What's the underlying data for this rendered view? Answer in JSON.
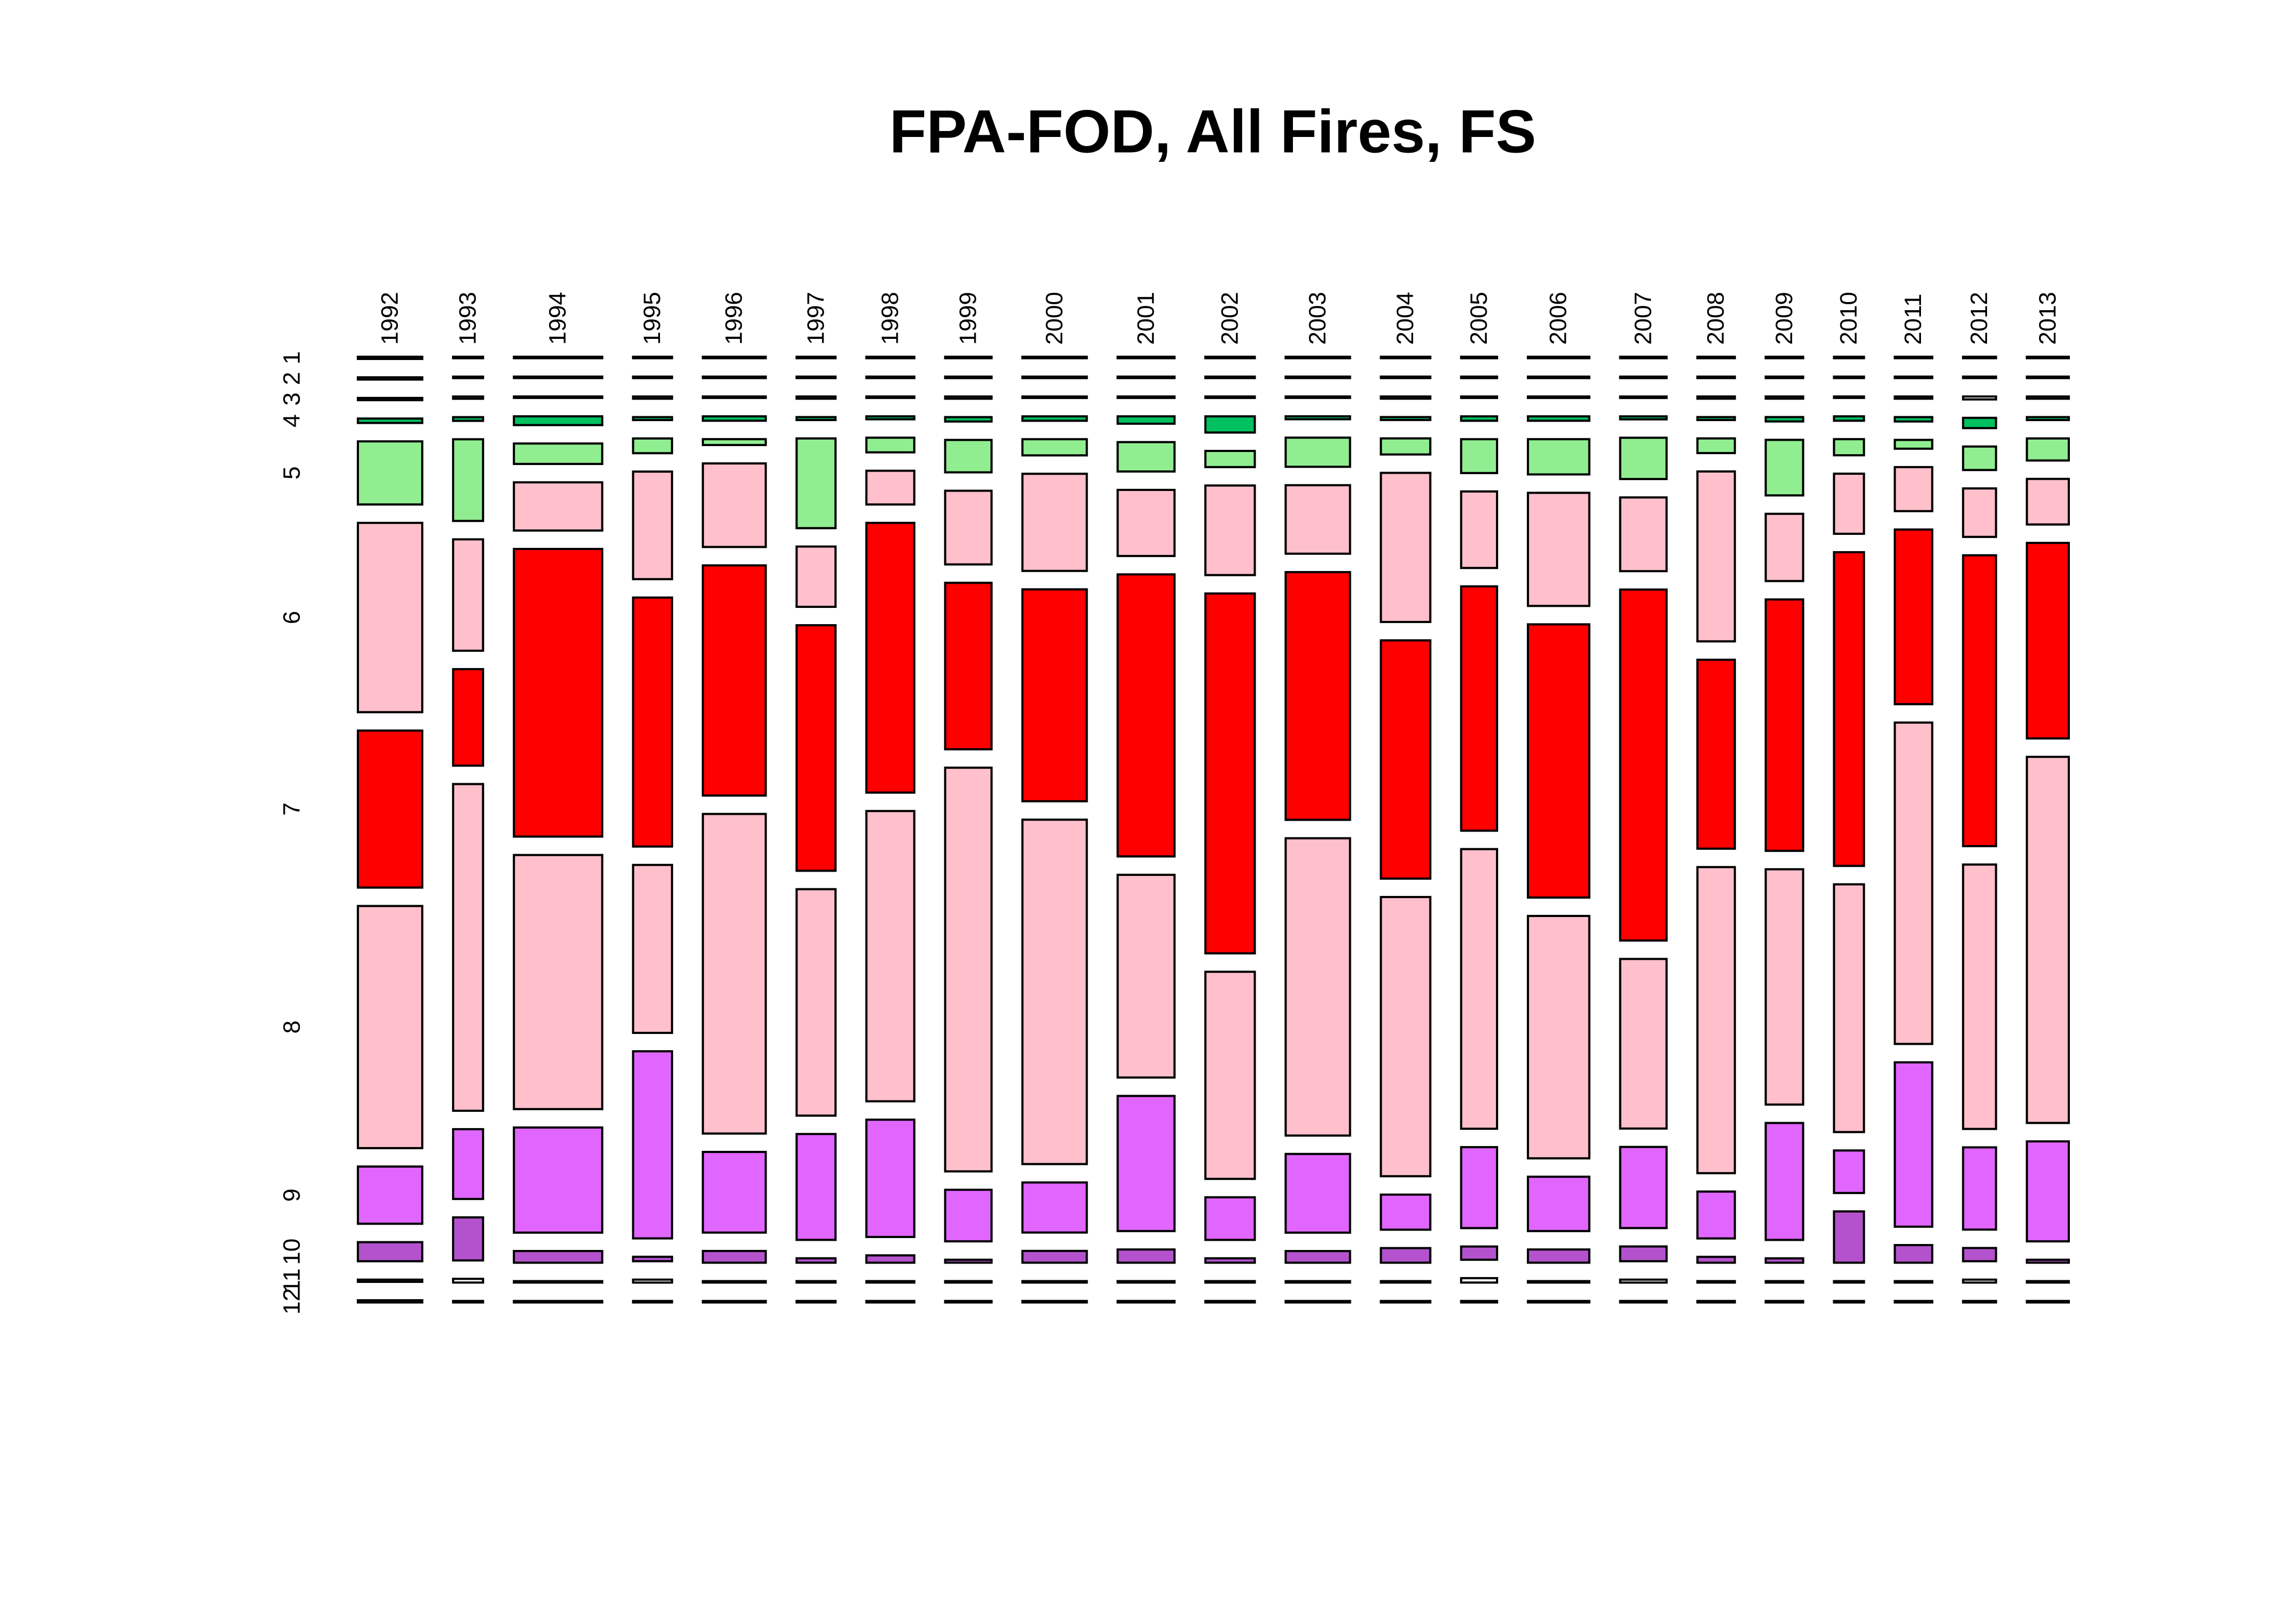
{
  "chart_data": {
    "type": "mosaic",
    "title": "FPA-FOD, All Fires, FS",
    "categories": [
      "1992",
      "1993",
      "1994",
      "1995",
      "1996",
      "1997",
      "1998",
      "1999",
      "2000",
      "2001",
      "2002",
      "2003",
      "2004",
      "2005",
      "2006",
      "2007",
      "2008",
      "2009",
      "2010",
      "2011",
      "2012",
      "2013"
    ],
    "totals": [
      4300,
      2000,
      5900,
      2600,
      4200,
      2600,
      3200,
      3100,
      4300,
      3800,
      3300,
      4300,
      3300,
      2400,
      4100,
      3100,
      2500,
      2500,
      2000,
      2500,
      2200,
      2800
    ],
    "series": [
      {
        "name": "1",
        "color": "#ffffff",
        "values": [
          0.3,
          0.2,
          0.2,
          0.2,
          0.2,
          0.2,
          0.2,
          0.2,
          0.2,
          0.2,
          0.2,
          0.2,
          0.2,
          0.2,
          0.2,
          0.2,
          0.2,
          0.2,
          0.2,
          0.2,
          0.2,
          0.2
        ]
      },
      {
        "name": "2",
        "color": "#ffffff",
        "values": [
          0.3,
          0.2,
          0.2,
          0.2,
          0.2,
          0.2,
          0.2,
          0.2,
          0.2,
          0.2,
          0.2,
          0.2,
          0.2,
          0.2,
          0.2,
          0.2,
          0.2,
          0.2,
          0.2,
          0.2,
          0.2,
          0.2
        ]
      },
      {
        "name": "3",
        "color": "#ffffff",
        "values": [
          0.3,
          0.3,
          0.2,
          0.3,
          0.2,
          0.3,
          0.2,
          0.3,
          0.2,
          0.2,
          0.2,
          0.2,
          0.3,
          0.2,
          0.2,
          0.2,
          0.3,
          0.3,
          0.2,
          0.3,
          0.4,
          0.3
        ]
      },
      {
        "name": "4",
        "color": "#00c060",
        "values": [
          0.6,
          0.5,
          1.2,
          0.4,
          0.6,
          0.4,
          0.4,
          0.6,
          0.6,
          1,
          2.2,
          0.4,
          0.4,
          0.6,
          0.6,
          0.4,
          0.4,
          0.6,
          0.6,
          0.6,
          1.4,
          0.4
        ]
      },
      {
        "name": "5",
        "color": "#90ee90",
        "values": [
          8.6,
          11,
          2.8,
          2,
          0.8,
          12.2,
          2,
          4.4,
          2.2,
          4,
          2.2,
          4,
          2.2,
          4.6,
          4.8,
          5.6,
          2,
          7.6,
          2.2,
          1.2,
          3.2,
          3
        ]
      },
      {
        "name": "6",
        "color": "#ffc0cb",
        "values": [
          25.8,
          15,
          6.6,
          14.6,
          11.4,
          8.2,
          4.6,
          10,
          13.2,
          9,
          12.2,
          9.4,
          20.4,
          10.4,
          15.4,
          10,
          23.2,
          9.2,
          8.2,
          6,
          6.6,
          6.2
        ]
      },
      {
        "name": "7",
        "color": "#ff0000",
        "values": [
          21.4,
          13,
          39.4,
          33.8,
          31.4,
          33.4,
          36.8,
          22.6,
          28.8,
          38.4,
          49,
          34,
          32.6,
          33.2,
          37.2,
          47.6,
          25.8,
          34.4,
          42.8,
          23.8,
          39.6,
          26.6
        ]
      },
      {
        "name": "8",
        "color": "#ffc0cb",
        "values": [
          33,
          44,
          34.8,
          22.8,
          43.6,
          30.8,
          39.6,
          54.8,
          46.8,
          27.6,
          28.2,
          40.8,
          38.2,
          38,
          33,
          23,
          41.8,
          32.2,
          33.8,
          43.8,
          36,
          49.8
        ]
      },
      {
        "name": "9",
        "color": "#e066ff",
        "values": [
          7.8,
          9.4,
          14.4,
          25.4,
          11,
          14.4,
          16,
          7,
          6.8,
          18.4,
          5.8,
          10.8,
          4.8,
          11,
          7.4,
          11,
          6.4,
          16,
          5.8,
          22.4,
          11.2,
          13.6
        ]
      },
      {
        "name": "10",
        "color": "#b452cd",
        "values": [
          2.6,
          5.8,
          1.6,
          0.6,
          1.6,
          0.6,
          1,
          0.4,
          1.6,
          1.8,
          0.6,
          1.6,
          2,
          1.8,
          1.8,
          2,
          0.8,
          0.6,
          7,
          2.4,
          1.8,
          0.4
        ]
      },
      {
        "name": "11",
        "color": "#ffffff",
        "values": [
          0.3,
          0.5,
          0.2,
          0.4,
          0.2,
          0.2,
          0.2,
          0.2,
          0.2,
          0.2,
          0.2,
          0.2,
          0.2,
          0.6,
          0.2,
          0.4,
          0.2,
          0.2,
          0.2,
          0.2,
          0.4,
          0.2
        ]
      },
      {
        "name": "12",
        "color": "#ffffff",
        "values": [
          0.3,
          0.2,
          0.2,
          0.2,
          0.2,
          0.2,
          0.2,
          0.2,
          0.2,
          0.2,
          0.2,
          0.2,
          0.2,
          0.2,
          0.2,
          0.2,
          0.2,
          0.2,
          0.2,
          0.2,
          0.2,
          0.2
        ]
      }
    ]
  }
}
